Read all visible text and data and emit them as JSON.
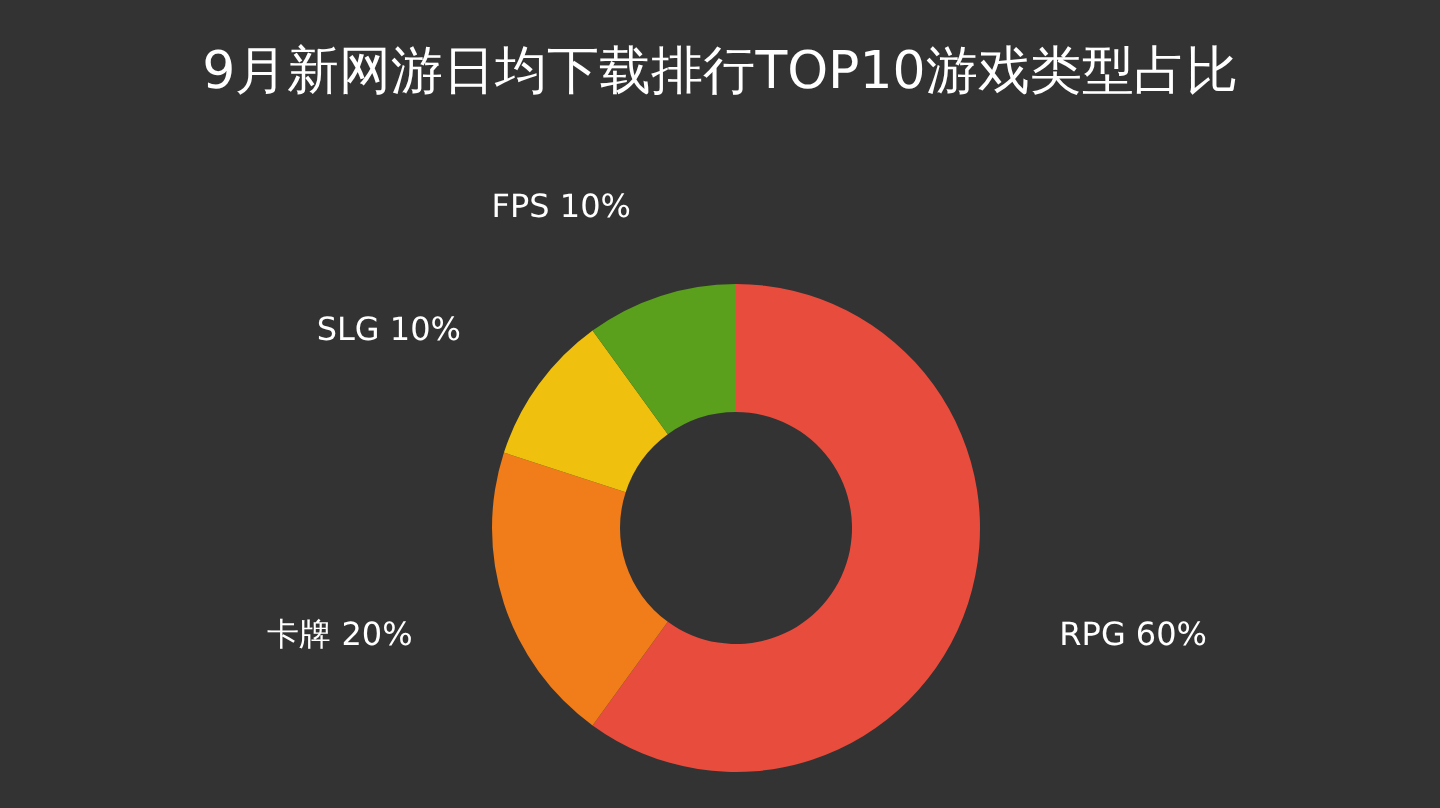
{
  "chart_data": {
    "type": "donut",
    "title": "9月新网游日均下载排行TOP10游戏类型占比",
    "categories": [
      "RPG",
      "卡牌",
      "SLG",
      "FPS"
    ],
    "values": [
      60,
      20,
      10,
      10
    ],
    "colors": [
      "#e84c3d",
      "#f07c1a",
      "#f0c00e",
      "#5aa01c"
    ],
    "value_labels": [
      "60%",
      "20%",
      "10%",
      "10%"
    ]
  }
}
